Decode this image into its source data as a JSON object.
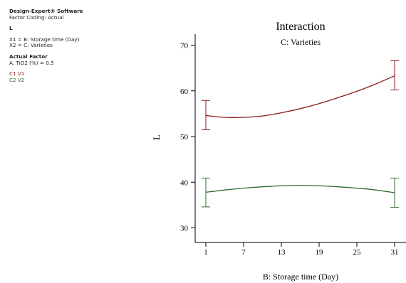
{
  "info": {
    "software": "Design-Expert® Software",
    "coding": "Factor Coding: Actual",
    "response": "L",
    "x1": "X1 = B: Storage time (Day)",
    "x2": "X2 = C: Varieties",
    "actual_factor_header": "Actual Factor",
    "actual_factor": "A: TiO2 (%) = 0.5",
    "legend": [
      "C1 V1",
      "C2 V2"
    ]
  },
  "chart_data": {
    "type": "line",
    "title": "Interaction",
    "subtitle": "C: Varieties",
    "xlabel": "B: Storage time (Day)",
    "ylabel": "L",
    "xlim": [
      1,
      31
    ],
    "ylim": [
      30,
      70
    ],
    "xticks": [
      1,
      7,
      13,
      19,
      25,
      31
    ],
    "yticks": [
      30,
      40,
      50,
      60,
      70
    ],
    "grid": false,
    "legend_placement": "left-panel",
    "series": [
      {
        "name": "C1 V1",
        "color": "#8b1a1a",
        "x": [
          1,
          4,
          7,
          10,
          13,
          16,
          19,
          22,
          25,
          28,
          31
        ],
        "y": [
          54.6,
          54.2,
          54.2,
          54.5,
          55.2,
          56.1,
          57.2,
          58.5,
          59.9,
          61.5,
          63.3
        ],
        "error_bars": [
          {
            "x": 1,
            "low": 51.5,
            "high": 57.9
          },
          {
            "x": 31,
            "low": 60.2,
            "high": 66.6
          }
        ]
      },
      {
        "name": "C2 V2",
        "color": "#2e6b2e",
        "x": [
          1,
          4,
          7,
          10,
          13,
          16,
          19,
          22,
          25,
          28,
          31
        ],
        "y": [
          37.8,
          38.3,
          38.7,
          39.0,
          39.2,
          39.3,
          39.2,
          39.0,
          38.7,
          38.3,
          37.7
        ],
        "error_bars": [
          {
            "x": 1,
            "low": 34.6,
            "high": 40.9
          },
          {
            "x": 31,
            "low": 34.5,
            "high": 40.9
          }
        ]
      }
    ]
  }
}
